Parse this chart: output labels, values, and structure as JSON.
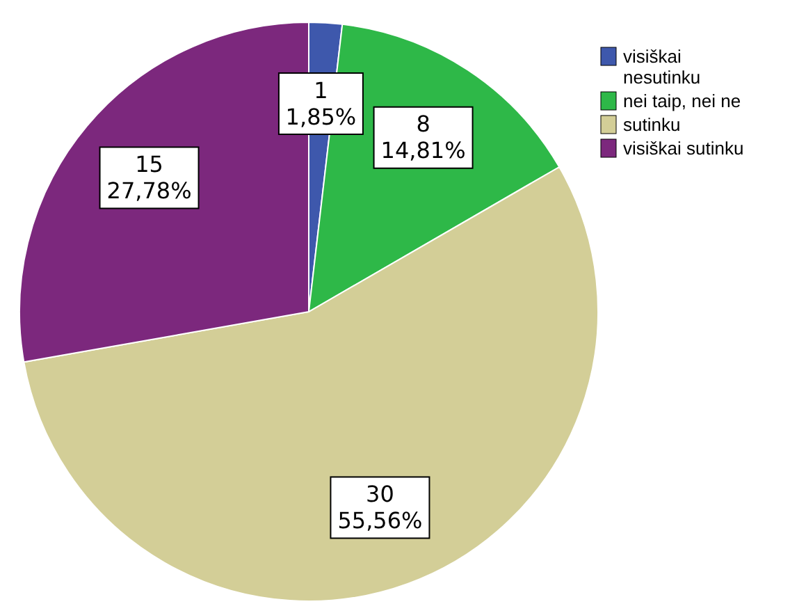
{
  "chart_data": {
    "type": "pie",
    "categories": [
      "visiškai nesutinku",
      "nei taip, nei ne",
      "sutinku",
      "visiškai sutinku"
    ],
    "values": [
      1,
      8,
      30,
      15
    ],
    "colors": [
      "#3e58ac",
      "#2eb848",
      "#d3ce97",
      "#7c287d"
    ],
    "value_labels": [
      "1\n1,85%",
      "8\n14,81%",
      "30\n55,56%",
      "15\n27,78%"
    ],
    "legend": "top right"
  }
}
